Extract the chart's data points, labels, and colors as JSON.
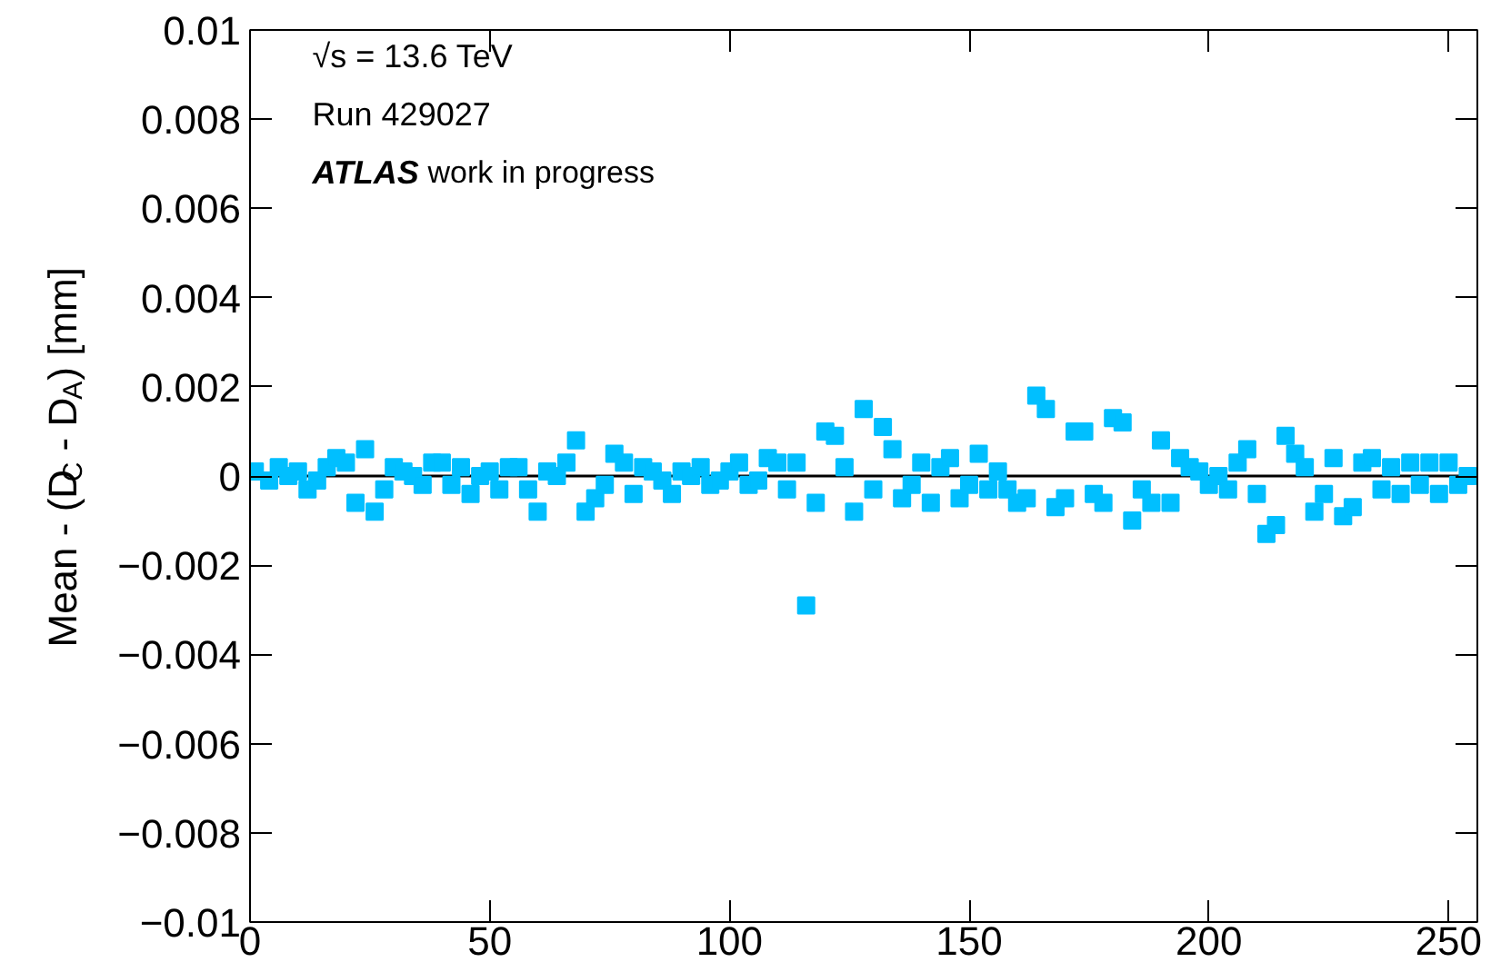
{
  "chart_data": {
    "type": "scatter",
    "ylabel": "Mean - (D$_{C}$ - D$_{A}$) [mm]",
    "annotations": [
      "√s = 13.6 TeV",
      "Run 429027",
      "ATLAS work in progress"
    ],
    "marker": "square",
    "grid": false,
    "xlim": [
      0,
      256
    ],
    "xticks": [
      0,
      50,
      100,
      150,
      200,
      250
    ],
    "ylim": [
      -0.01,
      0.01
    ],
    "yticks": [
      {
        "value": -0.01,
        "label": "−0.01"
      },
      {
        "value": -0.008,
        "label": "−0.008"
      },
      {
        "value": -0.006,
        "label": "−0.006"
      },
      {
        "value": -0.004,
        "label": "−0.004"
      },
      {
        "value": -0.002,
        "label": "−0.002"
      },
      0,
      0.002,
      0.004,
      0.006,
      0.008,
      0.01
    ],
    "ref_lines": [
      {
        "axis": "y",
        "value": 0,
        "color": "#000000"
      }
    ],
    "series": [
      {
        "color": "#00bfff",
        "x": [
          1,
          4,
          6,
          8,
          10,
          12,
          14,
          16,
          18,
          20,
          22,
          24,
          26,
          28,
          30,
          32,
          34,
          36,
          38,
          40,
          42,
          44,
          46,
          48,
          50,
          52,
          54,
          56,
          58,
          60,
          62,
          64,
          66,
          68,
          70,
          72,
          74,
          76,
          78,
          80,
          82,
          84,
          86,
          88,
          90,
          92,
          94,
          96,
          98,
          100,
          102,
          104,
          106,
          108,
          110,
          112,
          114,
          116,
          118,
          120,
          122,
          124,
          126,
          128,
          130,
          132,
          134,
          136,
          138,
          140,
          142,
          144,
          146,
          148,
          150,
          152,
          154,
          156,
          158,
          160,
          162,
          164,
          166,
          168,
          170,
          172,
          174,
          176,
          178,
          180,
          182,
          184,
          186,
          188,
          190,
          192,
          194,
          196,
          198,
          200,
          202,
          204,
          206,
          208,
          210,
          212,
          214,
          216,
          218,
          220,
          222,
          224,
          226,
          228,
          230,
          232,
          234,
          236,
          238,
          240,
          242,
          244,
          246,
          248,
          250,
          252,
          254
        ],
        "values": [
          0.0001,
          -0.0001,
          0.0002,
          0,
          0.0001,
          -0.0003,
          -0.0001,
          0.0002,
          0.0004,
          0.0003,
          -0.0006,
          0.0006,
          -0.0008,
          -0.0003,
          0.0002,
          0.0001,
          0,
          -0.0002,
          0.0003,
          0.0003,
          -0.0002,
          0.0002,
          -0.0004,
          0,
          0.0001,
          -0.0003,
          0.0002,
          0.0002,
          -0.0003,
          -0.0008,
          0.0001,
          0,
          0.0003,
          0.0008,
          -0.0008,
          -0.0005,
          -0.0002,
          0.0005,
          0.0003,
          -0.0004,
          0.0002,
          0.0001,
          -0.0001,
          -0.0004,
          0.0001,
          0,
          0.0002,
          -0.0002,
          -0.0001,
          0.0001,
          0.0003,
          -0.0002,
          -0.0001,
          0.0004,
          0.0003,
          -0.0003,
          0.0003,
          -0.0029,
          -0.0006,
          0.001,
          0.0009,
          0.0002,
          -0.0008,
          0.0015,
          -0.0003,
          0.0011,
          0.0006,
          -0.0005,
          -0.0002,
          0.0003,
          -0.0006,
          0.0002,
          0.0004,
          -0.0005,
          -0.0002,
          0.0005,
          -0.0003,
          0.0001,
          -0.0003,
          -0.0006,
          -0.0005,
          0.0018,
          0.0015,
          -0.0007,
          -0.0005,
          0.001,
          0.001,
          -0.0004,
          -0.0006,
          0.0013,
          0.0012,
          -0.001,
          -0.0003,
          -0.0006,
          0.0008,
          -0.0006,
          0.0004,
          0.0002,
          0.0001,
          -0.0002,
          0,
          -0.0003,
          0.0003,
          0.0006,
          -0.0004,
          -0.0013,
          -0.0011,
          0.0009,
          0.0005,
          0.0002,
          -0.0008,
          -0.0004,
          0.0004,
          -0.0009,
          -0.0007,
          0.0003,
          0.0004,
          -0.0003,
          0.0002,
          -0.0004,
          0.0003,
          -0.0002,
          0.0003,
          -0.0004,
          0.0003,
          -0.0002,
          0
        ]
      }
    ]
  }
}
